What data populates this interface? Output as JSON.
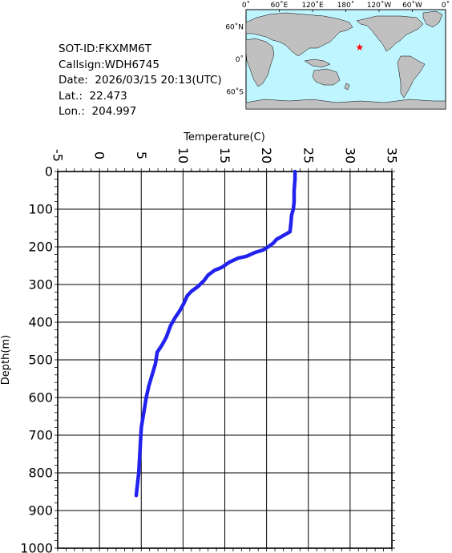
{
  "info": {
    "sot_id": "SOT-ID:FKXMM6T",
    "callsign": "Callsign:WDH6745",
    "date": "Date:  2026/03/15 20:13(UTC)",
    "lat": "Lat.:  22.473",
    "lon": "Lon.:  204.997"
  },
  "map": {
    "lon_labels": [
      "0˚",
      "60˚E",
      "120˚E",
      "180˚",
      "120˚W",
      "60˚W",
      "0˚"
    ],
    "lat_labels": [
      "60˚N",
      "0˚",
      "60˚S"
    ],
    "ocean_color": "#bff5ff",
    "land_color": "#c0c0c0",
    "marker_color": "#ff0000",
    "marker": {
      "lon": 204.997,
      "lat": 22.473
    }
  },
  "chart_data": {
    "type": "line",
    "xlabel": "Temperature(C)",
    "ylabel": "Depth(m)",
    "xlim": [
      -5,
      35
    ],
    "ylim": [
      0,
      1000
    ],
    "y_inverted": true,
    "x_ticks": [
      "-5",
      "0",
      "5",
      "10",
      "15",
      "20",
      "25",
      "30",
      "35"
    ],
    "y_ticks": [
      "0",
      "100",
      "200",
      "300",
      "400",
      "500",
      "600",
      "700",
      "800",
      "900",
      "1000"
    ],
    "grid": true,
    "line_color": "#2222ee",
    "series": [
      {
        "points": [
          [
            23.4,
            0
          ],
          [
            23.4,
            20
          ],
          [
            23.3,
            50
          ],
          [
            23.3,
            80
          ],
          [
            23.2,
            100
          ],
          [
            23.0,
            115
          ],
          [
            22.9,
            140
          ],
          [
            22.8,
            160
          ],
          [
            22.0,
            170
          ],
          [
            21.2,
            180
          ],
          [
            20.8,
            190
          ],
          [
            20.2,
            200
          ],
          [
            19.6,
            208
          ],
          [
            18.6,
            215
          ],
          [
            17.6,
            225
          ],
          [
            16.6,
            230
          ],
          [
            15.6,
            240
          ],
          [
            14.6,
            255
          ],
          [
            13.8,
            262
          ],
          [
            13.0,
            275
          ],
          [
            12.5,
            290
          ],
          [
            11.8,
            305
          ],
          [
            11.0,
            318
          ],
          [
            10.5,
            330
          ],
          [
            10.1,
            350
          ],
          [
            9.6,
            370
          ],
          [
            9.0,
            390
          ],
          [
            8.5,
            410
          ],
          [
            8.0,
            440
          ],
          [
            7.5,
            460
          ],
          [
            6.9,
            480
          ],
          [
            6.7,
            510
          ],
          [
            6.3,
            540
          ],
          [
            5.9,
            570
          ],
          [
            5.6,
            600
          ],
          [
            5.3,
            640
          ],
          [
            5.0,
            680
          ],
          [
            4.9,
            720
          ],
          [
            4.8,
            760
          ],
          [
            4.7,
            800
          ],
          [
            4.5,
            840
          ],
          [
            4.4,
            860
          ]
        ]
      }
    ]
  }
}
